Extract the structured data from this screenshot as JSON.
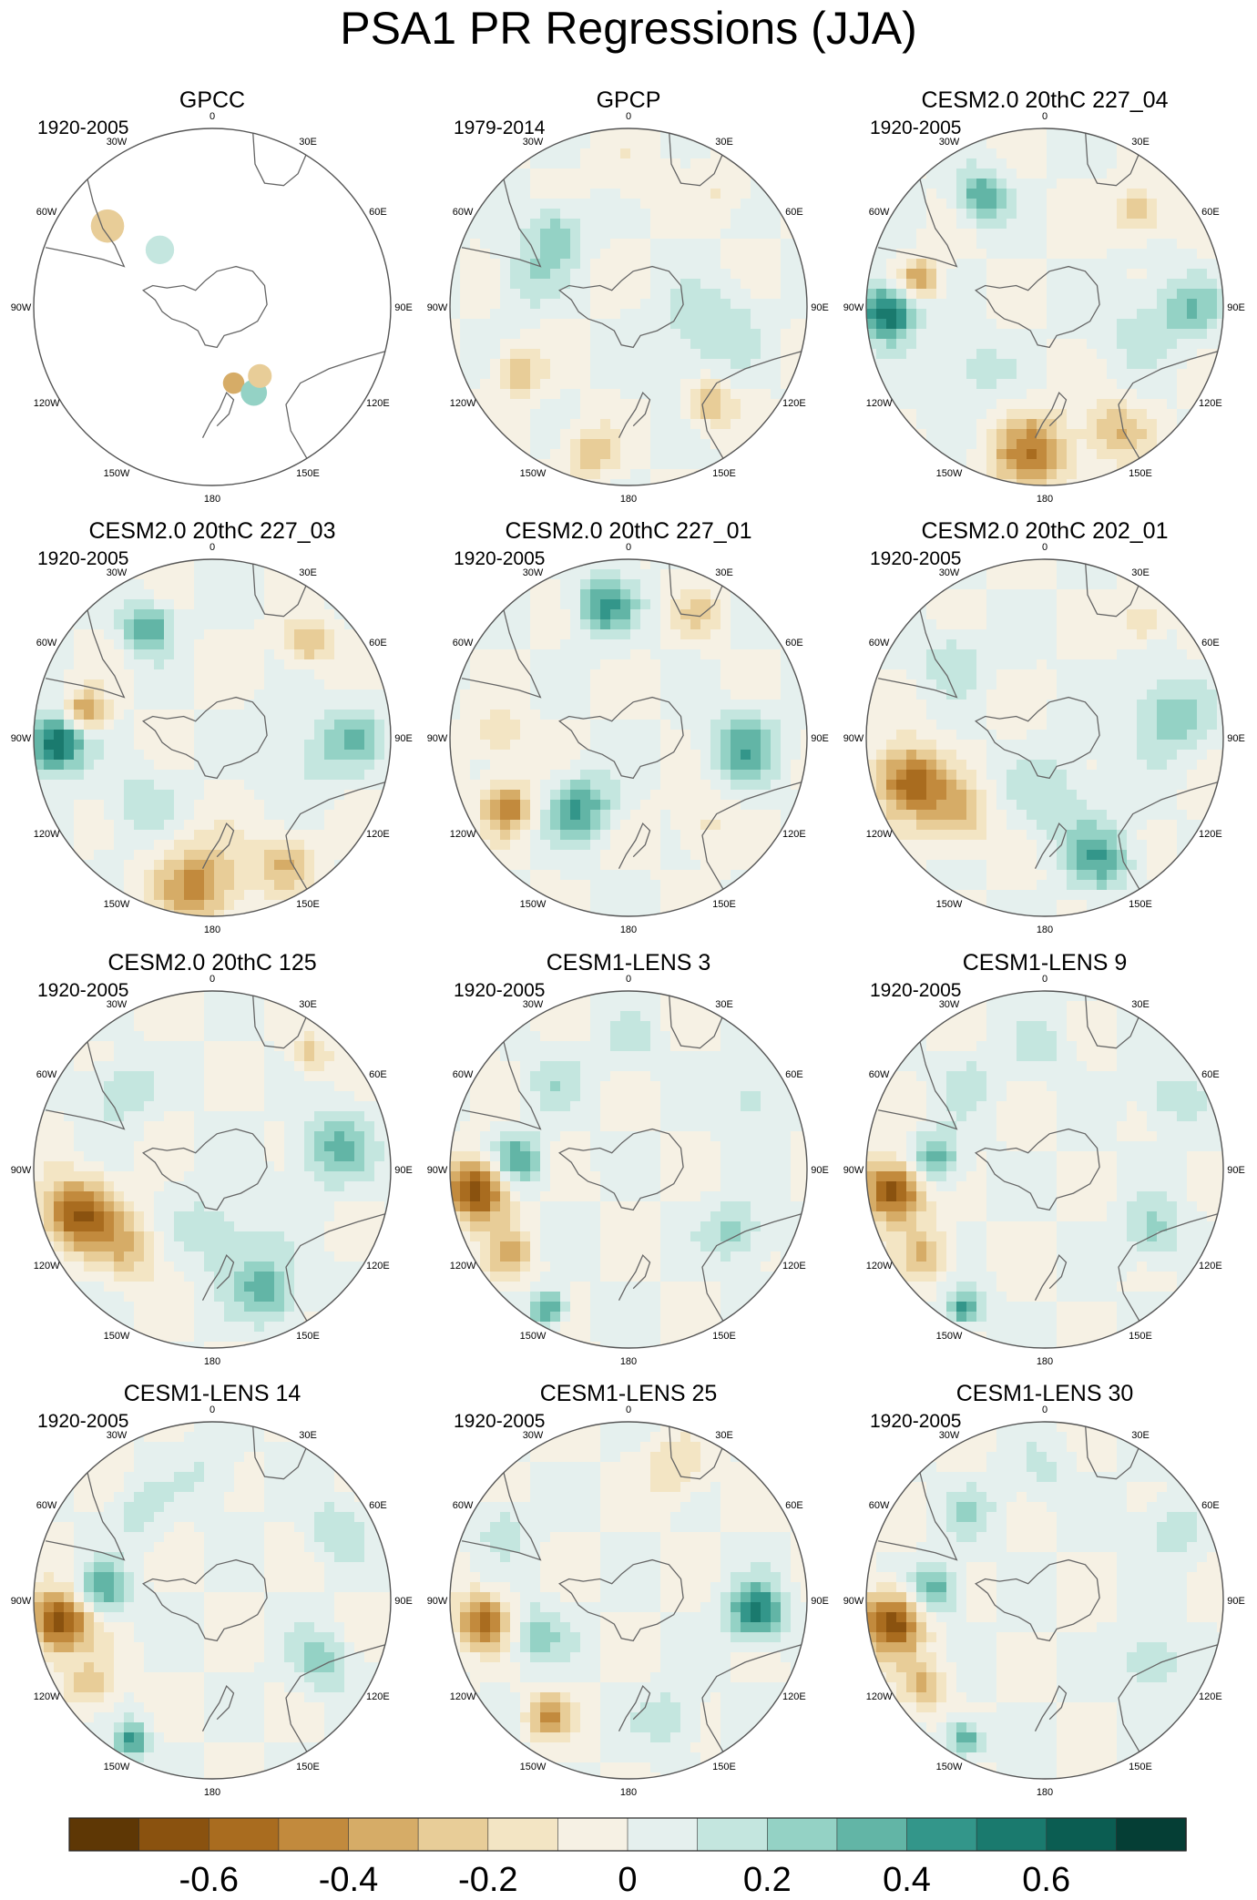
{
  "page": {
    "title": "PSA1 PR Regressions (JJA)"
  },
  "lon_labels": [
    "0",
    "30E",
    "60E",
    "90E",
    "120E",
    "150E",
    "180",
    "150W",
    "120W",
    "90W",
    "60W",
    "30W"
  ],
  "panels": [
    {
      "title": "GPCC",
      "period": "1920-2005",
      "pattern": "obs_land"
    },
    {
      "title": "GPCP",
      "period": "1979-2014",
      "pattern": "weak"
    },
    {
      "title": "CESM2.0 20thC 227_04",
      "period": "1920-2005",
      "pattern": "strong"
    },
    {
      "title": "CESM2.0 20thC 227_03",
      "period": "1920-2005",
      "pattern": "strong"
    },
    {
      "title": "CESM2.0 20thC 227_01",
      "period": "1920-2005",
      "pattern": "moderate"
    },
    {
      "title": "CESM2.0 20thC 202_01",
      "period": "1920-2005",
      "pattern": "dry_sw"
    },
    {
      "title": "CESM2.0 20thC 125",
      "period": "1920-2005",
      "pattern": "dry_sw"
    },
    {
      "title": "CESM1-LENS 3",
      "period": "1920-2005",
      "pattern": "dry_w"
    },
    {
      "title": "CESM1-LENS 9",
      "period": "1920-2005",
      "pattern": "dry_w"
    },
    {
      "title": "CESM1-LENS 14",
      "period": "1920-2005",
      "pattern": "dry_w"
    },
    {
      "title": "CESM1-LENS 25",
      "period": "1920-2005",
      "pattern": "wet_e"
    },
    {
      "title": "CESM1-LENS 30",
      "period": "1920-2005",
      "pattern": "dry_w"
    }
  ],
  "chart_data": {
    "type": "heatmap",
    "title": "PSA1 PR Regressions (JJA)",
    "projection": "south polar stereographic",
    "colorbar": {
      "colors": [
        "#5e3705",
        "#8a520f",
        "#a96c1f",
        "#c28a3d",
        "#d6ac67",
        "#e8cd98",
        "#f3e5c4",
        "#f6f1e4",
        "#e5f0ee",
        "#c4e6df",
        "#94d2c5",
        "#62b5a6",
        "#33968a",
        "#1a7a6e",
        "#0b5d52",
        "#053e35"
      ],
      "tick_labels": [
        "-0.6",
        "-0.4",
        "-0.2",
        "0",
        "0.2",
        "0.4",
        "0.6"
      ],
      "tick_values": [
        -0.6,
        -0.4,
        -0.2,
        0,
        0.2,
        0.4,
        0.6
      ],
      "range": [
        -0.8,
        0.8
      ]
    }
  }
}
